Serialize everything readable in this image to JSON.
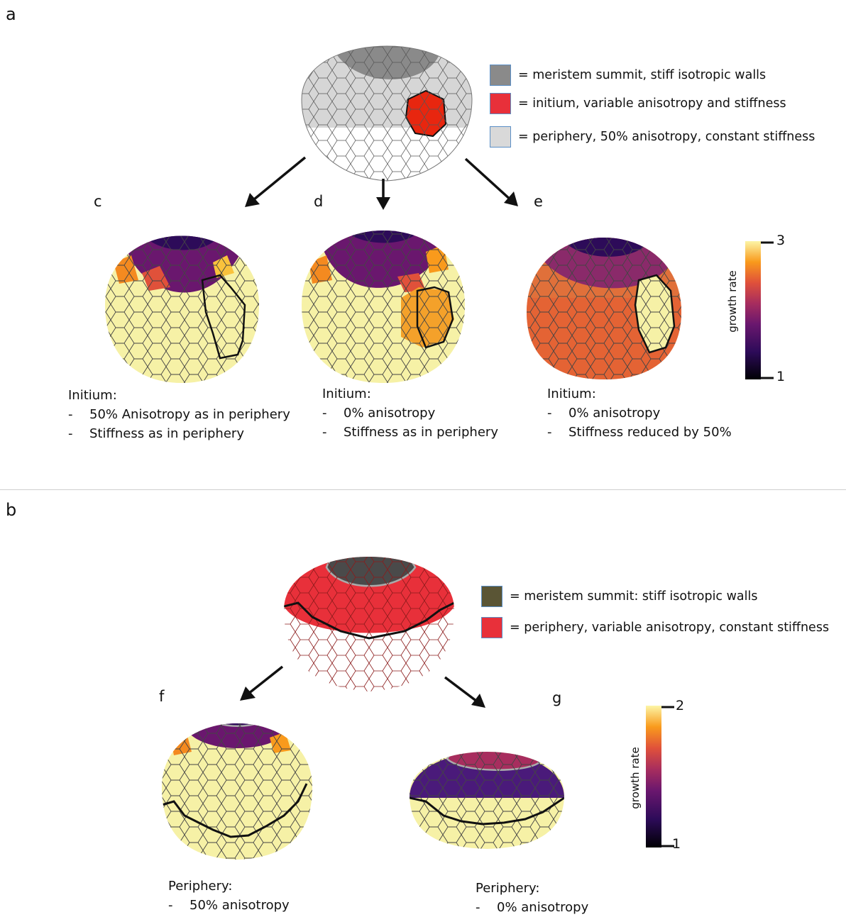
{
  "panel_a": {
    "letter": "a",
    "legend": [
      {
        "color": "#8a8a8a",
        "label": "= meristem summit, stiff isotropic walls"
      },
      {
        "color": "#e8303a",
        "label": "= initium, variable anisotropy and stiffness"
      },
      {
        "color": "#d9d9d9",
        "label": "= periphery, 50% anisotropy, constant stiffness"
      }
    ],
    "sub_letters": [
      "c",
      "d",
      "e"
    ],
    "captions": [
      {
        "title": "Initium:",
        "lines": [
          "50% Anisotropy as in periphery",
          "Stiffness as in periphery"
        ]
      },
      {
        "title": "Initium:",
        "lines": [
          "0% anisotropy",
          "Stiffness as in periphery"
        ]
      },
      {
        "title": "Initium:",
        "lines": [
          "0% anisotropy",
          "Stiffness reduced by 50%"
        ]
      }
    ],
    "colorbar": {
      "label": "growth rate",
      "max": "3",
      "min": "1"
    }
  },
  "panel_b": {
    "letter": "b",
    "legend": [
      {
        "color": "#5a5535",
        "label": "= meristem summit: stiff isotropic walls"
      },
      {
        "color": "#e8303a",
        "label": "= periphery, variable anisotropy, constant stiffness"
      }
    ],
    "sub_letters": [
      "f",
      "g"
    ],
    "captions": [
      {
        "title": "Periphery:",
        "lines": [
          "50% anisotropy"
        ]
      },
      {
        "title": "Periphery:",
        "lines": [
          "0% anisotropy"
        ]
      }
    ],
    "colorbar": {
      "label": "growth rate",
      "max": "2",
      "min": "1"
    }
  },
  "dash": "-"
}
